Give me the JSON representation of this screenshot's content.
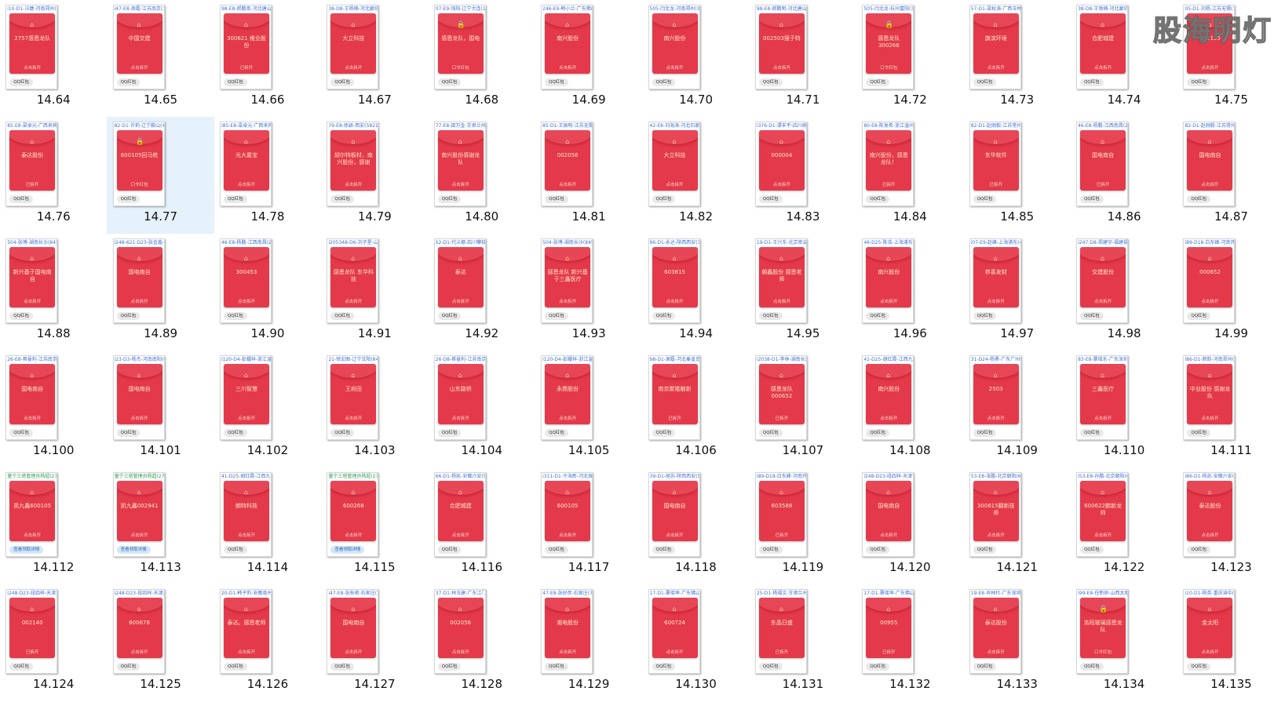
{
  "watermark": "股海明灯",
  "tiles": [
    {
      "label": "14.64",
      "header": "i10-D1-汪婕-河南郑州(3",
      "text": "2757感恩龙队",
      "action": "点击拆开",
      "pill": "QQ红包"
    },
    {
      "label": "14.65",
      "header": "i47-E8-周磊-江苏南京(13",
      "text": "中国交建",
      "action": "点击拆开",
      "pill": "QQ红包"
    },
    {
      "label": "14.66",
      "header": "98-E8-郝鹏南-河北唐山(2",
      "text": "300621 维业股份",
      "action": "已拆开",
      "pill": "QQ红包"
    },
    {
      "label": "14.67",
      "header": "38-D8-王杨楠-河北廊坊(",
      "text": "大立科技",
      "action": "点击拆开",
      "pill": "QQ红包"
    },
    {
      "label": "14.68",
      "header": "07-E9-钱阳-辽宁大连(1",
      "text": "感恩龙队，国电",
      "action": "口令红包",
      "pill": "QQ红包",
      "lock": true
    },
    {
      "label": "14.69",
      "header": "246-E9-韩小兰-广东佛山",
      "text": "南兴股份",
      "action": "点击拆开",
      "pill": "QQ红包"
    },
    {
      "label": "14.70",
      "header": "505-闫北龙-河南郑州(304",
      "text": "南兴股份",
      "action": "点击拆开",
      "pill": "QQ红包"
    },
    {
      "label": "14.71",
      "header": "98-E8-郝鹏明-河北唐山(",
      "text": "002503搜于特",
      "action": "点击拆开",
      "pill": "QQ红包"
    },
    {
      "label": "14.72",
      "header": "505-闫北龙-杭州富阳(3",
      "text": "感恩龙队 300266",
      "action": "口令红包",
      "pill": "QQ红包",
      "lock": true
    },
    {
      "label": "14.73",
      "header": "57-D1-梁松涛-广西玉林(",
      "text": "旗滨环境",
      "action": "点击拆开",
      "pill": "QQ红包"
    },
    {
      "label": "14.74",
      "header": "38-D8-王勃楠-河北廊坊(",
      "text": "合肥城建",
      "action": "点击拆开",
      "pill": "QQ红包"
    },
    {
      "label": "14.75",
      "header": "05-D1-刘杨-江苏无锡(1",
      "text": "600155",
      "action": "点击拆开",
      "pill": "QQ红包"
    },
    {
      "label": "14.76",
      "header": "85-E8-梁卓元-广西来宾(",
      "text": "泰达股份",
      "action": "已拆开",
      "pill": "QQ红包"
    },
    {
      "label": "14.77",
      "header": "82-D1-许莉-辽宁鞍山(4",
      "text": "600105回马枪",
      "action": "口令红包",
      "pill": "QQ红包",
      "lock": true,
      "selected": true
    },
    {
      "label": "14.78",
      "header": "i85-E8-梁卓元-广西来宾(",
      "text": "光大嘉宝",
      "action": "点击拆开",
      "pill": "QQ红包"
    },
    {
      "label": "14.79",
      "header": "79-E8-徐颖-西安(58217",
      "text": "胡尔特板材，南兴股份，感谢",
      "action": "点击拆开",
      "pill": "QQ红包"
    },
    {
      "label": "14.80",
      "header": "77-E8-田万金-甘肃兰州(",
      "text": "南兴股份感谢龙队",
      "action": "点击拆开",
      "pill": "QQ红包"
    },
    {
      "label": "14.81",
      "header": "85-D1-王振明-江苏无锡(",
      "text": "002056",
      "action": "点击拆开",
      "pill": "QQ红包"
    },
    {
      "label": "14.82",
      "header": "42-E8-刘海涛-河北石家庄",
      "text": "大立科技",
      "action": "点击拆开",
      "pill": "QQ红包"
    },
    {
      "label": "14.83",
      "header": "i376-D1-谭丰平-四川绵",
      "text": "000004",
      "action": "点击拆开",
      "pill": "QQ红包"
    },
    {
      "label": "14.84",
      "header": "80-E8-陈发希-浙江温州(",
      "text": "南兴股份，感恩龙队！",
      "action": "已拆开",
      "pill": "QQ红包"
    },
    {
      "label": "14.85",
      "header": "82-D1-赵刚毅-江苏常州(",
      "text": "东华软件",
      "action": "已拆开",
      "pill": "QQ红包"
    },
    {
      "label": "14.86",
      "header": "46-E8-杨鹏-江西南昌(24",
      "text": "国电南自",
      "action": "已拆开",
      "pill": "QQ红包"
    },
    {
      "label": "14.87",
      "header": "82-D1-赵刚毅-江苏常州(",
      "text": "国电南自",
      "action": "点击拆开",
      "pill": "QQ红包"
    },
    {
      "label": "14.88",
      "header": "504-张博-湖南长沙(8454",
      "text": "新兴基于国电南自",
      "action": "点击拆开",
      "pill": "QQ红包"
    },
    {
      "label": "14.89",
      "header": "i248-621-D23-张金鑫-辽宁",
      "text": "国电南自",
      "action": "点击拆开",
      "pill": "QQ红包"
    },
    {
      "label": "14.90",
      "header": "46-E8-杨鹏-江西南昌(24",
      "text": "300453",
      "action": "点击拆开",
      "pill": "QQ红包"
    },
    {
      "label": "14.91",
      "header": "i205348-D6-刘子星-山东",
      "text": "感恩龙队 东华科技",
      "action": "点击拆开",
      "pill": "QQ红包"
    },
    {
      "label": "14.92",
      "header": "S2-D1-代义娜-四川攀枝花",
      "text": "泰达",
      "action": "点击拆开",
      "pill": "QQ红包"
    },
    {
      "label": "14.93",
      "header": "504-张博-湖南长沙(8454",
      "text": "感恩龙队 新兴基于三鑫医疗",
      "action": "点击拆开",
      "pill": "QQ红包"
    },
    {
      "label": "14.94",
      "header": "96-D1-永达-陕西西安(39",
      "text": "603815",
      "action": "点击拆开",
      "pill": "QQ红包"
    },
    {
      "label": "14.95",
      "header": "19-D1-王兴东-北京密云(",
      "text": "朝鑫股份 感恩老师",
      "action": "点击拆开",
      "pill": "QQ红包"
    },
    {
      "label": "14.96",
      "header": "46-D25-陈浩-上海浦东(",
      "text": "南兴股份",
      "action": "点击拆开",
      "pill": "QQ红包"
    },
    {
      "label": "14.97",
      "header": "i07-E9-赵峰-上海浦东(46",
      "text": "恭喜发财",
      "action": "点击拆开",
      "pill": "QQ红包"
    },
    {
      "label": "14.98",
      "header": "i247-D8-郑建宇-福建福州",
      "text": "交建股份",
      "action": "点击拆开",
      "pill": "QQ红包"
    },
    {
      "label": "14.99",
      "header": "i89-D18-白东峰-河南开封(",
      "text": "000652",
      "action": "点击拆开",
      "pill": "QQ红包"
    },
    {
      "label": "14.100",
      "header": "26-E8-蒋曼利-江苏南京(",
      "text": "国电南自",
      "action": "点击拆开",
      "pill": "QQ红包"
    },
    {
      "label": "14.101",
      "header": "i23-D3-杨杰-河南南阳(628",
      "text": "国电南自",
      "action": "点击拆开",
      "pill": "QQ红包"
    },
    {
      "label": "14.102",
      "header": "i120-D4-彭耀祥-浙江温",
      "text": "三川智慧",
      "action": "点击拆开",
      "pill": "QQ红包"
    },
    {
      "label": "14.103",
      "header": "21-徐宏图-辽宁沈阳(84",
      "text": "王府田",
      "action": "点击拆开",
      "pill": "QQ红包"
    },
    {
      "label": "14.104",
      "header": "26-D8-蒋曼利-江苏南京(",
      "text": "山东路桥",
      "action": "点击拆开",
      "pill": "QQ红包"
    },
    {
      "label": "14.105",
      "header": "i120-D4-彭耀祥-浙江温州",
      "text": "永鼎股份",
      "action": "点击拆开",
      "pill": "QQ红包"
    },
    {
      "label": "14.106",
      "header": "98-D1-谢磊-河北秦皇岛(",
      "text": "南京聚隆触新",
      "action": "已拆开",
      "pill": "QQ红包"
    },
    {
      "label": "14.107",
      "header": "i2038-D1-李林-湖南长沙(",
      "text": "感恩龙队 000652",
      "action": "已拆开",
      "pill": "QQ红包"
    },
    {
      "label": "14.108",
      "header": "41-D25-胡红霞-江西九江",
      "text": "南兴股份",
      "action": "点击拆开",
      "pill": "QQ红包"
    },
    {
      "label": "14.109",
      "header": "31-D24-杨勇-广东广州(",
      "text": "2503",
      "action": "点击拆开",
      "pill": "QQ红包"
    },
    {
      "label": "14.110",
      "header": "83-E8-覃瑶东-广东深圳(",
      "text": "三鑫医疗",
      "action": "点击拆开",
      "pill": "QQ红包"
    },
    {
      "label": "14.111",
      "header": "i86-D1-颜韵-河南郑州(84",
      "text": "中业股份 感谢龙队",
      "action": "点击拆开",
      "pill": "QQ红包"
    },
    {
      "label": "14.112",
      "header": "量宁三塔管理员杨超(2763",
      "text": "凯九鑫600105",
      "action": "点击拆开",
      "pill": "查看领取详情",
      "green": true
    },
    {
      "label": "14.113",
      "header": "量宁三塔管理员杨超(2763",
      "text": "凯九鑫002941",
      "action": "点击拆开",
      "pill": "查看领取详情",
      "green": true
    },
    {
      "label": "14.114",
      "header": "41-D25-胡红霞-江西九江",
      "text": "朗特科技",
      "action": "点击拆开",
      "pill": "QQ红包"
    },
    {
      "label": "14.115",
      "header": "量宁三塔管理员杨超(2763",
      "text": "600268",
      "action": "点击拆开",
      "pill": "查看领取详情",
      "green": true
    },
    {
      "label": "14.116",
      "header": "66-D1-杨凯-安徽六安(58",
      "text": "合肥城建",
      "action": "点击拆开",
      "pill": "QQ红包"
    },
    {
      "label": "14.117",
      "header": "i311-D1-于海新-河北保定",
      "text": "600105",
      "action": "点击拆开",
      "pill": "QQ红包"
    },
    {
      "label": "14.118",
      "header": "39-D1-胡苏-陕西西安(51",
      "text": "国电南自",
      "action": "点击拆开",
      "pill": "QQ红包"
    },
    {
      "label": "14.119",
      "header": "i89-D18-白东峰-河南开封",
      "text": "603588",
      "action": "已拆开",
      "pill": "QQ红包"
    },
    {
      "label": "14.120",
      "header": "i248-D23-段四祥-天津市(",
      "text": "国电南自",
      "action": "点击拆开",
      "pill": "QQ红包"
    },
    {
      "label": "14.121",
      "header": "53-E8-张鹏-北京朝阳(64",
      "text": "300815翻新技师",
      "action": "点击拆开",
      "pill": "QQ红包"
    },
    {
      "label": "14.122",
      "header": "i53-E8-孙鹏-北京朝阳(64",
      "text": "600622鹏新龙师",
      "action": "点击拆开",
      "pill": "QQ红包"
    },
    {
      "label": "14.123",
      "header": "i86-D1-杨凯-安徽六安(58",
      "text": "泰达股份",
      "action": "点击拆开",
      "pill": "QQ红包"
    },
    {
      "label": "14.124",
      "header": "i248-D23-段四祥-天津东",
      "text": "002140",
      "action": "已拆开",
      "pill": "QQ红包"
    },
    {
      "label": "14.125",
      "header": "i248-D23-段四祥-天津东",
      "text": "600678",
      "action": "点击拆开",
      "pill": "QQ红包"
    },
    {
      "label": "14.126",
      "header": "20-D1-韩子豹-安徽亳州(",
      "text": "泰达。感恩老师",
      "action": "点击拆开",
      "pill": "QQ红包"
    },
    {
      "label": "14.127",
      "header": "i47-E8-张秋艳-石家庄(78",
      "text": "国电南自",
      "action": "点击拆开",
      "pill": "QQ红包"
    },
    {
      "label": "14.128",
      "header": "37-D1-林玉建-广东江门(",
      "text": "002056",
      "action": "点击拆开",
      "pill": "QQ红包"
    },
    {
      "label": "14.129",
      "header": "47-E8-张好彦-石家庄(78",
      "text": "湘电股份",
      "action": "点击拆开",
      "pill": "QQ红包"
    },
    {
      "label": "14.130",
      "header": "17-D1-覃瑶坤-广东佛山(",
      "text": "600724",
      "action": "点击拆开",
      "pill": "QQ红包"
    },
    {
      "label": "14.131",
      "header": "25-D1-杨福文-甘肃兰州(",
      "text": "东晶日盛",
      "action": "已拆开",
      "pill": "QQ红包"
    },
    {
      "label": "14.132",
      "header": "17-D1-覃瑶坤-广东佛山(",
      "text": "00955",
      "action": "已拆开",
      "pill": "QQ红包"
    },
    {
      "label": "14.133",
      "header": "19-E8-肖林杜-广东深圳(",
      "text": "泰达股份",
      "action": "点击拆开",
      "pill": "QQ红包"
    },
    {
      "label": "14.134",
      "header": "i99-E8-任新妍-山西太原(",
      "text": "洛阳玻璃感恩龙队",
      "action": "口令红包",
      "pill": "QQ红包",
      "lock": true
    },
    {
      "label": "14.135",
      "header": "i10-D1-杨英-重庆渝中(84",
      "text": "金太阳",
      "action": "点击拆开",
      "pill": "QQ红包"
    }
  ]
}
